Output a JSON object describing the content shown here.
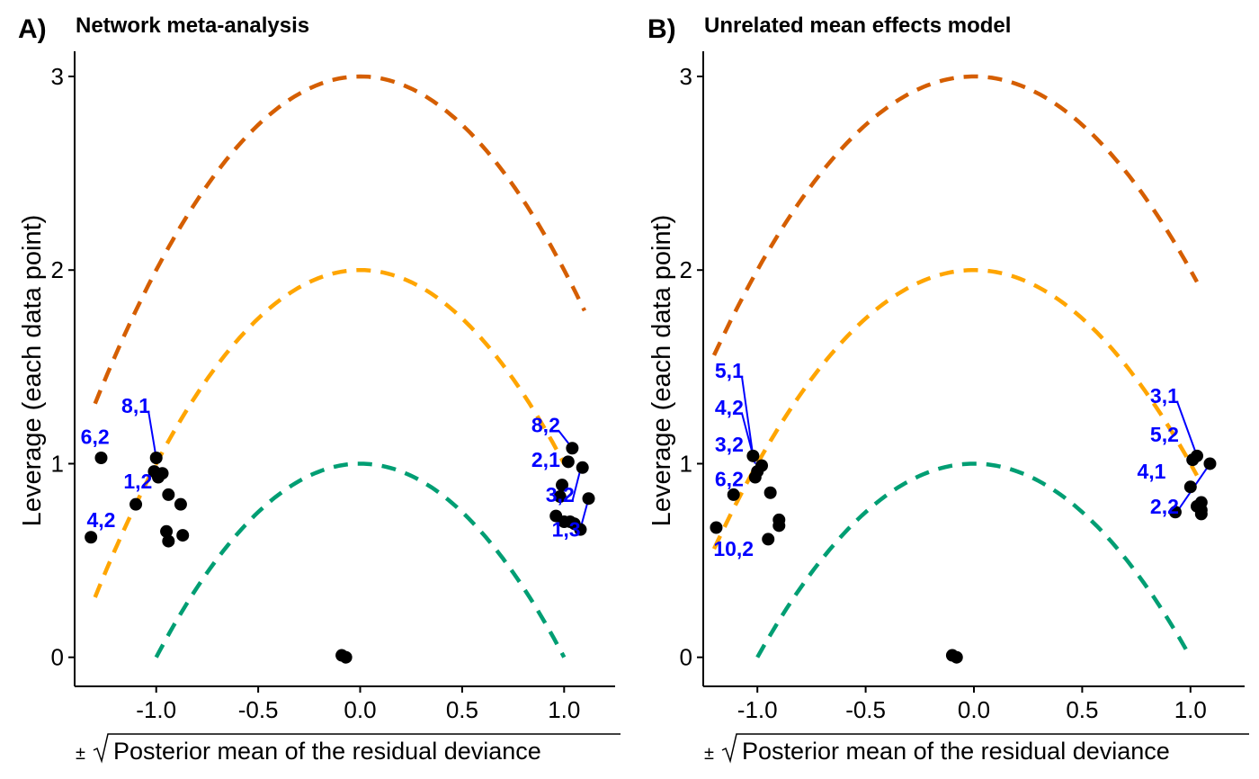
{
  "chart_data": [
    {
      "panel": "A)",
      "title": "Network meta-analysis",
      "type": "scatter",
      "xlabel_prefix": "±",
      "xlabel_sqrt": "Posterior mean of the residual deviance",
      "ylabel": "Leverage (each data point)",
      "xlim": [
        -1.4,
        1.25
      ],
      "ylim": [
        -0.15,
        3.13
      ],
      "xticks": [
        -1.0,
        -0.5,
        0.0,
        0.5,
        1.0
      ],
      "xtick_labels": [
        "-1.0",
        "-0.5",
        "0.0",
        "0.5",
        "1.0"
      ],
      "yticks": [
        0,
        1,
        2,
        3
      ],
      "ytick_labels": [
        "0",
        "1",
        "2",
        "3"
      ],
      "grid": false,
      "curves": [
        {
          "c": 1,
          "color": "#009E73",
          "xrange": [
            -1.0,
            1.0
          ]
        },
        {
          "c": 2,
          "color": "#FFA500",
          "xrange": [
            -1.3,
            1.0
          ]
        },
        {
          "c": 3,
          "color": "#D55E00",
          "xrange": [
            -1.3,
            1.1
          ]
        }
      ],
      "points": [
        {
          "x": -1.32,
          "y": 0.62
        },
        {
          "x": -1.27,
          "y": 1.03
        },
        {
          "x": -1.1,
          "y": 0.79
        },
        {
          "x": -1.0,
          "y": 1.03
        },
        {
          "x": -1.01,
          "y": 0.96
        },
        {
          "x": -0.99,
          "y": 0.93
        },
        {
          "x": -0.97,
          "y": 0.95
        },
        {
          "x": -0.94,
          "y": 0.84
        },
        {
          "x": -0.88,
          "y": 0.79
        },
        {
          "x": -0.95,
          "y": 0.65
        },
        {
          "x": -0.94,
          "y": 0.6
        },
        {
          "x": -0.87,
          "y": 0.63
        },
        {
          "x": -0.09,
          "y": 0.01
        },
        {
          "x": -0.07,
          "y": 0.0
        },
        {
          "x": 0.96,
          "y": 0.73
        },
        {
          "x": 0.99,
          "y": 0.89
        },
        {
          "x": 0.98,
          "y": 0.83
        },
        {
          "x": 1.0,
          "y": 0.7
        },
        {
          "x": 1.03,
          "y": 0.7
        },
        {
          "x": 1.02,
          "y": 1.01
        },
        {
          "x": 1.04,
          "y": 1.08
        },
        {
          "x": 1.09,
          "y": 0.98
        },
        {
          "x": 1.05,
          "y": 0.69
        },
        {
          "x": 1.08,
          "y": 0.66
        },
        {
          "x": 1.12,
          "y": 0.82
        }
      ],
      "labels": [
        {
          "text": "8,1",
          "x": -1.1,
          "y": 1.3,
          "tx": -1.0,
          "ty": 1.03
        },
        {
          "text": "6,2",
          "x": -1.3,
          "y": 1.14
        },
        {
          "text": "1,2",
          "x": -1.09,
          "y": 0.91
        },
        {
          "text": "4,2",
          "x": -1.27,
          "y": 0.71
        },
        {
          "text": "8,2",
          "x": 0.91,
          "y": 1.2,
          "tx": 1.04,
          "ty": 1.08
        },
        {
          "text": "2,1",
          "x": 0.91,
          "y": 1.02
        },
        {
          "text": "3,2",
          "x": 0.98,
          "y": 0.84,
          "tx": 1.08,
          "ty": 0.97
        },
        {
          "text": "1,3",
          "x": 1.01,
          "y": 0.66,
          "tx": 1.12,
          "ty": 0.82
        }
      ]
    },
    {
      "panel": "B)",
      "title": "Unrelated mean effects model",
      "type": "scatter",
      "xlabel_prefix": "±",
      "xlabel_sqrt": "Posterior mean of the residual deviance",
      "ylabel": "Leverage (each data point)",
      "xlim": [
        -1.25,
        1.25
      ],
      "ylim": [
        -0.15,
        3.13
      ],
      "xticks": [
        -1.0,
        -0.5,
        0.0,
        0.5,
        1.0
      ],
      "xtick_labels": [
        "-1.0",
        "-0.5",
        "0.0",
        "0.5",
        "1.0"
      ],
      "yticks": [
        0,
        1,
        2,
        3
      ],
      "ytick_labels": [
        "0",
        "1",
        "2",
        "3"
      ],
      "grid": false,
      "curves": [
        {
          "c": 1,
          "color": "#009E73",
          "xrange": [
            -1.0,
            1.0
          ]
        },
        {
          "c": 2,
          "color": "#FFA500",
          "xrange": [
            -1.2,
            1.03
          ]
        },
        {
          "c": 3,
          "color": "#D55E00",
          "xrange": [
            -1.2,
            1.03
          ]
        }
      ],
      "points": [
        {
          "x": -1.19,
          "y": 0.67
        },
        {
          "x": -1.11,
          "y": 0.84
        },
        {
          "x": -1.02,
          "y": 1.04
        },
        {
          "x": -1.01,
          "y": 0.93
        },
        {
          "x": -1.0,
          "y": 0.96
        },
        {
          "x": -0.98,
          "y": 0.99
        },
        {
          "x": -0.94,
          "y": 0.85
        },
        {
          "x": -0.9,
          "y": 0.71
        },
        {
          "x": -0.9,
          "y": 0.68
        },
        {
          "x": -0.95,
          "y": 0.61
        },
        {
          "x": -0.1,
          "y": 0.01
        },
        {
          "x": -0.08,
          "y": 0.0
        },
        {
          "x": 0.93,
          "y": 0.75
        },
        {
          "x": 1.0,
          "y": 0.88
        },
        {
          "x": 1.01,
          "y": 1.02
        },
        {
          "x": 1.03,
          "y": 1.04
        },
        {
          "x": 1.03,
          "y": 0.78
        },
        {
          "x": 1.05,
          "y": 0.8
        },
        {
          "x": 1.05,
          "y": 0.76
        },
        {
          "x": 1.05,
          "y": 0.74
        },
        {
          "x": 1.09,
          "y": 1.0
        }
      ],
      "labels": [
        {
          "text": "5,1",
          "x": -1.13,
          "y": 1.48,
          "tx": -1.02,
          "ty": 1.04
        },
        {
          "text": "4,2",
          "x": -1.13,
          "y": 1.29,
          "tx": -1.01,
          "ty": 1.0
        },
        {
          "text": "3,2",
          "x": -1.13,
          "y": 1.1
        },
        {
          "text": "6,2",
          "x": -1.13,
          "y": 0.92
        },
        {
          "text": "10,2",
          "x": -1.11,
          "y": 0.56
        },
        {
          "text": "3,1",
          "x": 0.88,
          "y": 1.35,
          "tx": 1.03,
          "ty": 1.04
        },
        {
          "text": "5,2",
          "x": 0.88,
          "y": 1.15
        },
        {
          "text": "4,1",
          "x": 0.82,
          "y": 0.96
        },
        {
          "text": "2,2",
          "x": 0.88,
          "y": 0.78,
          "tx": 1.09,
          "ty": 1.0
        }
      ]
    }
  ]
}
